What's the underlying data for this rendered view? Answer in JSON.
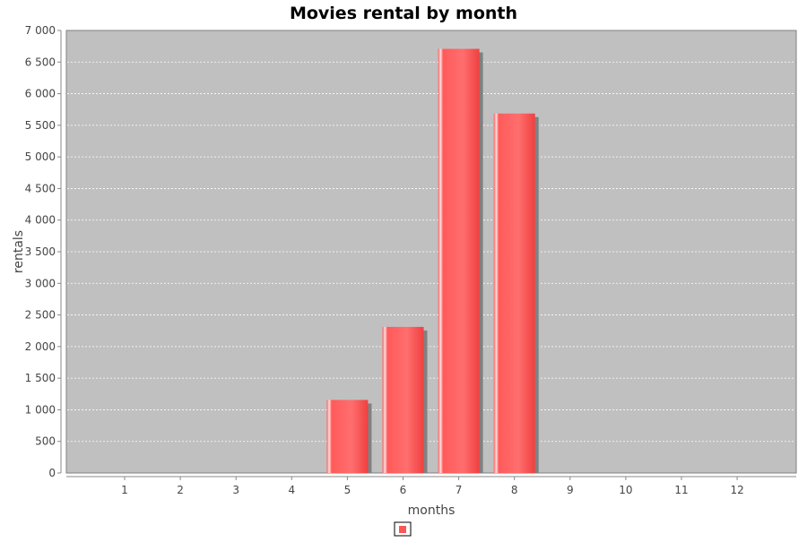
{
  "chart_data": {
    "type": "bar",
    "title": "Movies rental by month",
    "xlabel": "months",
    "ylabel": "rentals",
    "categories": [
      "1",
      "2",
      "3",
      "4",
      "5",
      "6",
      "7",
      "8",
      "9",
      "10",
      "11",
      "12"
    ],
    "series": [
      {
        "values": [
          0,
          0,
          0,
          0,
          1156,
          2311,
          6709,
          5686,
          0,
          0,
          0,
          0
        ]
      }
    ],
    "ylim": [
      0,
      7000
    ],
    "yticks": [
      0,
      500,
      1000,
      1500,
      2000,
      2500,
      3000,
      3500,
      4000,
      4500,
      5000,
      5500,
      6000,
      6500,
      7000
    ],
    "ytick_labels": [
      "0",
      "500",
      "1 000",
      "1 500",
      "2 000",
      "2 500",
      "3 000",
      "3 500",
      "4 000",
      "4 500",
      "5 000",
      "5 500",
      "6 000",
      "6 500",
      "7 000"
    ],
    "grid": true,
    "legend_position": "bottom",
    "colors": {
      "bar": "#ff5555",
      "plot_background": "#c0c0c0",
      "gridline": "#ffffff",
      "shadow": "#808080"
    }
  }
}
